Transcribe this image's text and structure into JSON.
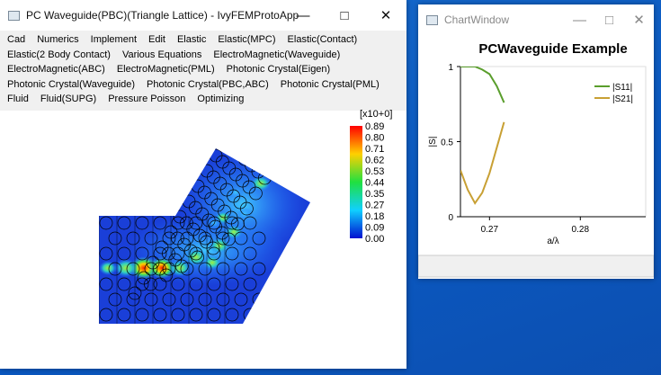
{
  "main_window": {
    "title": "PC Waveguide(PBC)(Triangle Lattice) - IvyFEMProtoApp",
    "menu": [
      [
        "Cad",
        "Numerics",
        "Implement",
        "Edit",
        "Elastic",
        "Elastic(MPC)",
        "Elastic(Contact)"
      ],
      [
        "Elastic(2 Body Contact)",
        "Various Equations",
        "ElectroMagnetic(Waveguide)"
      ],
      [
        "ElectroMagnetic(ABC)",
        "ElectroMagnetic(PML)",
        "Photonic Crystal(Eigen)"
      ],
      [
        "Photonic Crystal(Waveguide)",
        "Photonic Crystal(PBC,ABC)",
        "Photonic Crystal(PML)"
      ],
      [
        "Fluid",
        "Fluid(SUPG)",
        "Pressure Poisson",
        "Optimizing"
      ]
    ],
    "colorbar": {
      "exponent": "[x10+0]",
      "labels": [
        "0.89",
        "0.80",
        "0.71",
        "0.62",
        "0.53",
        "0.44",
        "0.35",
        "0.27",
        "0.18",
        "0.09",
        "0.00"
      ]
    }
  },
  "chart_window": {
    "title": "ChartWindow",
    "chart_data": {
      "type": "line",
      "title": "PCWaveguide Example",
      "x_label": "a/λ",
      "y_label": "|S|",
      "x": [
        0.2668,
        0.2676,
        0.2684,
        0.2692,
        0.27,
        0.2708,
        0.2716
      ],
      "series": [
        {
          "name": "|S11|",
          "color": "#5a9e2c",
          "values": [
            1.0,
            1.0,
            1.0,
            0.98,
            0.95,
            0.87,
            0.76
          ]
        },
        {
          "name": "|S21|",
          "color": "#c8a034",
          "values": [
            0.31,
            0.18,
            0.09,
            0.16,
            0.29,
            0.46,
            0.63
          ]
        }
      ],
      "xlim": [
        0.2668,
        0.2872
      ],
      "xticks": [
        0.27,
        0.28
      ],
      "ylim": [
        0,
        1
      ],
      "yticks": [
        0,
        0.5,
        1
      ],
      "legend": "upper right"
    }
  }
}
